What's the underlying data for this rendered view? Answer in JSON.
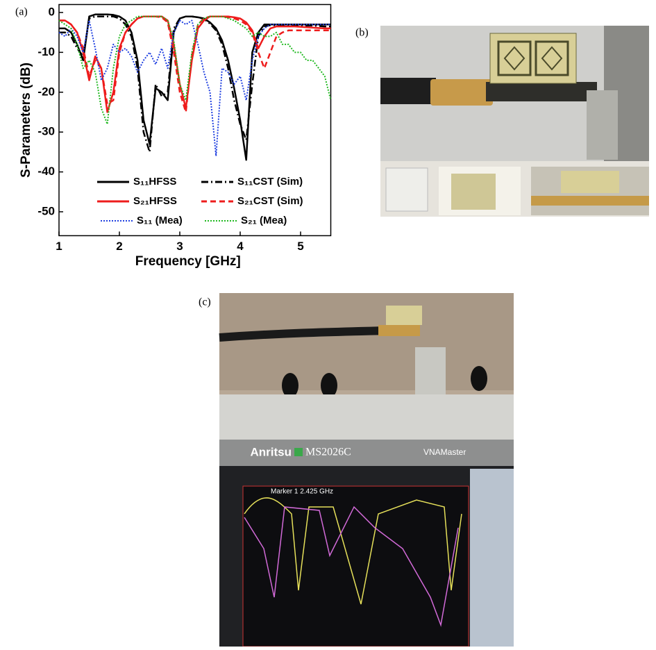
{
  "chart_data": {
    "type": "line",
    "xlabel": "Frequency [GHz]",
    "ylabel": "S-Parameters (dB)",
    "x": [
      1.0,
      1.1,
      1.2,
      1.3,
      1.4,
      1.5,
      1.6,
      1.7,
      1.8,
      1.9,
      2.0,
      2.1,
      2.2,
      2.3,
      2.4,
      2.5,
      2.6,
      2.7,
      2.8,
      2.9,
      3.0,
      3.1,
      3.2,
      3.3,
      3.4,
      3.5,
      3.6,
      3.7,
      3.8,
      3.9,
      4.0,
      4.1,
      4.2,
      4.3,
      4.4,
      4.5,
      4.6,
      4.7,
      4.8,
      4.9,
      5.0,
      5.1,
      5.2,
      5.3,
      5.4,
      5.5
    ],
    "xlim": [
      1,
      5.5
    ],
    "xticks": [
      1,
      2,
      3,
      4,
      5
    ],
    "ylim": [
      -56,
      2
    ],
    "yticks": [
      0,
      -10,
      -20,
      -30,
      -40,
      -50
    ],
    "series": [
      {
        "name": "S₁₁HFSS",
        "color": "#000000",
        "dash": "solid",
        "values": [
          -4,
          -4,
          -5,
          -8,
          -12,
          -1,
          -0.5,
          -0.5,
          -0.5,
          -0.6,
          -1,
          -2,
          -5,
          -12,
          -27,
          -33,
          -19,
          -20,
          -22,
          -5,
          -1.5,
          -1,
          -1,
          -1.2,
          -1.5,
          -2.5,
          -4,
          -7,
          -12,
          -19,
          -27,
          -37,
          -10,
          -5,
          -3,
          -3,
          -3,
          -3,
          -3,
          -3,
          -3,
          -3,
          -3,
          -3,
          -3,
          -3
        ]
      },
      {
        "name": "S₁₁CST (Sim)",
        "color": "#000000",
        "dash": "dashdot",
        "values": [
          -5,
          -5,
          -6,
          -9,
          -11,
          -1.5,
          -1,
          -1,
          -1,
          -1,
          -1.5,
          -3,
          -6,
          -14,
          -30,
          -35,
          -18,
          -21,
          -20,
          -4,
          -1.5,
          -1,
          -1,
          -1.2,
          -1.6,
          -2.8,
          -4.5,
          -8,
          -14,
          -22,
          -28,
          -32,
          -18,
          -6,
          -3.5,
          -3.2,
          -3.2,
          -3.2,
          -3.2,
          -3.2,
          -3.2,
          -3.3,
          -3.3,
          -3.4,
          -3.5,
          -3.5
        ]
      },
      {
        "name": "S₂₁HFSS",
        "color": "#ee1c1c",
        "dash": "solid",
        "values": [
          -2,
          -2,
          -3,
          -5,
          -10,
          -17,
          -11,
          -14,
          -25,
          -20,
          -9,
          -5,
          -3,
          -1.5,
          -1,
          -1,
          -1,
          -1,
          -2,
          -8,
          -18,
          -24,
          -12,
          -4,
          -2,
          -1,
          -1,
          -1,
          -1,
          -1.2,
          -1.5,
          -2.5,
          -4.5,
          -9,
          -6,
          -4,
          -3.5,
          -3.5,
          -3.5,
          -3.5,
          -3.6,
          -3.7,
          -3.8,
          -3.9,
          -4,
          -4
        ]
      },
      {
        "name": "S₂₁CST (Sim)",
        "color": "#ee1c1c",
        "dash": "dashed",
        "values": [
          -2,
          -2,
          -3,
          -5,
          -9,
          -16,
          -12,
          -14,
          -23,
          -22,
          -10,
          -5,
          -3,
          -1.5,
          -1,
          -1,
          -1,
          -1.2,
          -2.5,
          -10,
          -20,
          -25,
          -11,
          -3,
          -1.5,
          -1,
          -1,
          -1,
          -1.2,
          -1.5,
          -2,
          -3,
          -5,
          -10,
          -14,
          -10,
          -6,
          -5,
          -4.5,
          -4.5,
          -4.5,
          -4.5,
          -4.5,
          -4.5,
          -4.5,
          -4.5
        ]
      },
      {
        "name": "S₁₁ (Mea)",
        "color": "#1f3fe0",
        "dash": "dotted",
        "values": [
          -5,
          -6,
          -4,
          -6,
          -10,
          -2,
          -9,
          -17,
          -14,
          -8,
          -10,
          -9,
          -11,
          -15,
          -12,
          -10,
          -13,
          -9,
          -14,
          -5,
          -2,
          -3,
          -2,
          -8,
          -15,
          -20,
          -36,
          -14,
          -15,
          -18,
          -16,
          -22,
          -12,
          -6,
          -4,
          -3,
          -3,
          -3,
          -3,
          -3,
          -3,
          -3,
          -3,
          -3,
          -3,
          -3
        ]
      },
      {
        "name": "S₂₁ (Mea)",
        "color": "#1fb81f",
        "dash": "dotted",
        "values": [
          -2,
          -3,
          -4,
          -8,
          -14,
          -12,
          -15,
          -24,
          -28,
          -14,
          -6,
          -3,
          -2,
          -1,
          -1,
          -1,
          -1,
          -1,
          -2,
          -7,
          -18,
          -22,
          -10,
          -3,
          -1.5,
          -1,
          -1,
          -1,
          -1.5,
          -2,
          -3,
          -4,
          -6,
          -5,
          -6,
          -6,
          -5,
          -8,
          -8,
          -10,
          -10,
          -12,
          -12,
          -14,
          -16,
          -22
        ]
      }
    ]
  },
  "panel_labels": [
    "(a)",
    "(b)",
    "(c)"
  ],
  "photo_text": {
    "brand": "Anritsu",
    "model": "MS2026C",
    "product": "VNAMaster",
    "marker": "Marker 1 2.425 GHz"
  }
}
